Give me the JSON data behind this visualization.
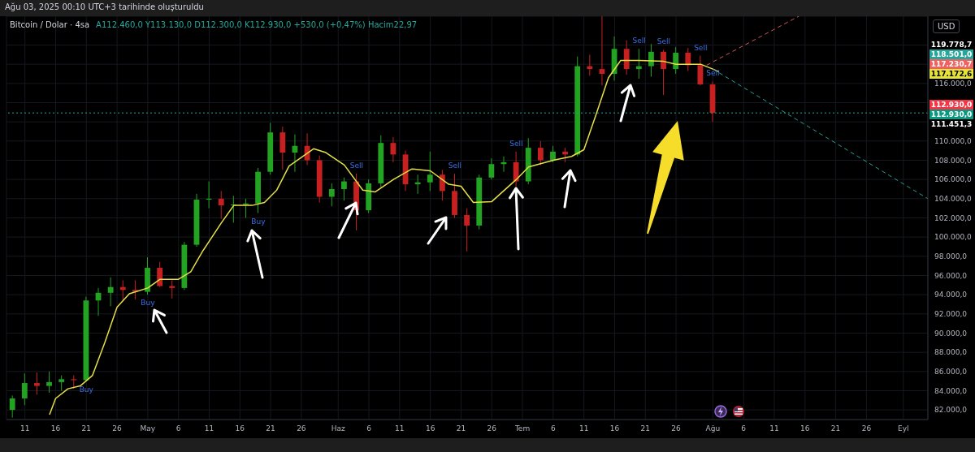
{
  "chart_data": {
    "type": "candlestick",
    "title": "Bitcoin / Dolar · 4sa",
    "ylabel": "USD",
    "x": [
      "2025-04-09",
      "2025-04-11",
      "2025-04-13",
      "2025-04-15",
      "2025-04-17",
      "2025-04-19",
      "2025-04-21",
      "2025-04-23",
      "2025-04-25",
      "2025-04-27",
      "2025-04-29",
      "2025-05-01",
      "2025-05-03",
      "2025-05-05",
      "2025-05-07",
      "2025-05-09",
      "2025-05-11",
      "2025-05-13",
      "2025-05-15",
      "2025-05-17",
      "2025-05-19",
      "2025-05-21",
      "2025-05-23",
      "2025-05-25",
      "2025-05-27",
      "2025-05-29",
      "2025-05-31",
      "2025-06-02",
      "2025-06-04",
      "2025-06-06",
      "2025-06-08",
      "2025-06-10",
      "2025-06-12",
      "2025-06-14",
      "2025-06-16",
      "2025-06-18",
      "2025-06-20",
      "2025-06-22",
      "2025-06-24",
      "2025-06-26",
      "2025-06-28",
      "2025-06-30",
      "2025-07-02",
      "2025-07-04",
      "2025-07-06",
      "2025-07-08",
      "2025-07-10",
      "2025-07-12",
      "2025-07-14",
      "2025-07-16",
      "2025-07-18",
      "2025-07-20",
      "2025-07-22",
      "2025-07-24",
      "2025-07-26",
      "2025-07-28",
      "2025-07-30",
      "2025-08-01"
    ],
    "ohlc": [
      [
        82000,
        83500,
        81200,
        83200
      ],
      [
        83200,
        85800,
        82500,
        84800
      ],
      [
        84800,
        85900,
        83600,
        84500
      ],
      [
        84500,
        86000,
        83800,
        84900
      ],
      [
        84900,
        85600,
        84000,
        85200
      ],
      [
        85200,
        85600,
        84200,
        85100
      ],
      [
        85100,
        93800,
        85000,
        93400
      ],
      [
        93400,
        94700,
        91800,
        94200
      ],
      [
        94200,
        95800,
        92800,
        94800
      ],
      [
        94800,
        95500,
        93300,
        94500
      ],
      [
        94500,
        95500,
        93500,
        94300
      ],
      [
        94300,
        97900,
        94000,
        96800
      ],
      [
        96800,
        97400,
        94800,
        94900
      ],
      [
        94900,
        95500,
        93600,
        94700
      ],
      [
        94700,
        99500,
        94500,
        99200
      ],
      [
        99200,
        104500,
        99000,
        103900
      ],
      [
        103900,
        105800,
        103000,
        104000
      ],
      [
        104000,
        104800,
        101900,
        103300
      ],
      [
        103300,
        104300,
        101500,
        103400
      ],
      [
        103400,
        104000,
        102000,
        103500
      ],
      [
        103500,
        107200,
        102500,
        106800
      ],
      [
        106800,
        111900,
        106500,
        110900
      ],
      [
        110900,
        111500,
        107000,
        108800
      ],
      [
        108800,
        110700,
        106800,
        109500
      ],
      [
        109500,
        110800,
        107500,
        108000
      ],
      [
        108000,
        108500,
        103600,
        104200
      ],
      [
        104200,
        105600,
        103200,
        105000
      ],
      [
        105000,
        106200,
        103800,
        105800
      ],
      [
        105800,
        106600,
        100700,
        102800
      ],
      [
        102800,
        106000,
        102500,
        105600
      ],
      [
        105600,
        110600,
        105200,
        109800
      ],
      [
        109800,
        110400,
        107800,
        108600
      ],
      [
        108600,
        109000,
        104800,
        105500
      ],
      [
        105500,
        106500,
        104500,
        105700
      ],
      [
        105700,
        108900,
        104800,
        106500
      ],
      [
        106500,
        107000,
        103800,
        104800
      ],
      [
        104800,
        106600,
        102000,
        102300
      ],
      [
        102300,
        103000,
        98500,
        101200
      ],
      [
        101200,
        106500,
        100800,
        106200
      ],
      [
        106200,
        108200,
        106000,
        107600
      ],
      [
        107600,
        108400,
        106800,
        107800
      ],
      [
        107800,
        108900,
        105300,
        105800
      ],
      [
        105800,
        110300,
        105500,
        109300
      ],
      [
        109300,
        110000,
        107500,
        108000
      ],
      [
        108000,
        109500,
        107800,
        108900
      ],
      [
        108900,
        109300,
        107800,
        108600
      ],
      [
        108600,
        118800,
        108400,
        117800
      ],
      [
        117800,
        119000,
        116800,
        117500
      ],
      [
        117500,
        123200,
        115800,
        117000
      ],
      [
        117000,
        120900,
        116300,
        119600
      ],
      [
        119600,
        120500,
        116900,
        117500
      ],
      [
        117500,
        119600,
        116500,
        117800
      ],
      [
        117800,
        120100,
        116700,
        119300
      ],
      [
        119300,
        119500,
        114800,
        117500
      ],
      [
        117500,
        119800,
        117000,
        119200
      ],
      [
        119200,
        119700,
        117300,
        117900
      ],
      [
        117900,
        118900,
        115800,
        115900
      ],
      [
        115900,
        116200,
        112000,
        112930
      ]
    ],
    "colors": [
      "#22a322",
      "#22a322",
      "#c62020",
      "#22a322",
      "#22a322",
      "#c62020",
      "#22a322",
      "#22a322",
      "#22a322",
      "#c62020",
      "#c62020",
      "#22a322",
      "#c62020",
      "#c62020",
      "#22a322",
      "#22a322",
      "#22a322",
      "#c62020",
      "#22a322",
      "#22a322",
      "#22a322",
      "#22a322",
      "#c62020",
      "#22a322",
      "#c62020",
      "#c62020",
      "#22a322",
      "#22a322",
      "#c62020",
      "#22a322",
      "#22a322",
      "#c62020",
      "#c62020",
      "#22a322",
      "#22a322",
      "#c62020",
      "#c62020",
      "#c62020",
      "#22a322",
      "#22a322",
      "#22a322",
      "#c62020",
      "#22a322",
      "#c62020",
      "#22a322",
      "#c62020",
      "#22a322",
      "#c62020",
      "#c62020",
      "#22a322",
      "#c62020",
      "#22a322",
      "#22a322",
      "#c62020",
      "#22a322",
      "#c62020",
      "#c62020",
      "#c62020"
    ],
    "series": [
      {
        "type": "line",
        "color": "#e5e046",
        "x": [
          "2025-04-15",
          "2025-04-16",
          "2025-04-18",
          "2025-04-20",
          "2025-04-22",
          "2025-04-24",
          "2025-04-26",
          "2025-04-28",
          "2025-05-01",
          "2025-05-03",
          "2025-05-06",
          "2025-05-08",
          "2025-05-10",
          "2025-05-13",
          "2025-05-15",
          "2025-05-18",
          "2025-05-20",
          "2025-05-22",
          "2025-05-24",
          "2025-05-28",
          "2025-05-30",
          "2025-06-02",
          "2025-06-05",
          "2025-06-07",
          "2025-06-10",
          "2025-06-13",
          "2025-06-16",
          "2025-06-19",
          "2025-06-21",
          "2025-06-23",
          "2025-06-26",
          "2025-06-30",
          "2025-07-02",
          "2025-07-06",
          "2025-07-09",
          "2025-07-11",
          "2025-07-13",
          "2025-07-15",
          "2025-07-17",
          "2025-07-20",
          "2025-07-24",
          "2025-07-26",
          "2025-07-30",
          "2025-08-01",
          "2025-08-02"
        ],
        "values": [
          81500,
          83200,
          84200,
          84500,
          85600,
          89000,
          92700,
          94100,
          94700,
          95600,
          95600,
          96400,
          98600,
          101500,
          103300,
          103300,
          103600,
          104900,
          107400,
          109200,
          108800,
          107500,
          104900,
          104700,
          106000,
          107100,
          106900,
          105500,
          105300,
          103600,
          103700,
          106000,
          107300,
          108000,
          108400,
          109100,
          112800,
          116600,
          118400,
          118400,
          118300,
          118000,
          118000,
          117500,
          117200
        ]
      },
      {
        "type": "line",
        "color": "#d05a55",
        "line_style": "dashed",
        "x": [
          "2025-07-31",
          "2025-08-15"
        ],
        "values": [
          117900,
          123000
        ]
      },
      {
        "type": "line",
        "color": "#2aa198",
        "line_style": "dashed",
        "x": [
          "2025-08-01",
          "2025-09-05"
        ],
        "values": [
          117500,
          104000
        ]
      }
    ],
    "xlim": [
      "2025-04-08",
      "2025-09-05"
    ],
    "xticks": [
      {
        "value": "2025-04-11",
        "label": "11"
      },
      {
        "value": "2025-04-16",
        "label": "16"
      },
      {
        "value": "2025-04-21",
        "label": "21"
      },
      {
        "value": "2025-04-26",
        "label": "26"
      },
      {
        "value": "2025-05-01",
        "label": "May"
      },
      {
        "value": "2025-05-06",
        "label": "6"
      },
      {
        "value": "2025-05-11",
        "label": "11"
      },
      {
        "value": "2025-05-16",
        "label": "16"
      },
      {
        "value": "2025-05-21",
        "label": "21"
      },
      {
        "value": "2025-05-26",
        "label": "26"
      },
      {
        "value": "2025-06-01",
        "label": "Haz"
      },
      {
        "value": "2025-06-06",
        "label": "6"
      },
      {
        "value": "2025-06-11",
        "label": "11"
      },
      {
        "value": "2025-06-16",
        "label": "16"
      },
      {
        "value": "2025-06-21",
        "label": "21"
      },
      {
        "value": "2025-06-26",
        "label": "26"
      },
      {
        "value": "2025-07-01",
        "label": "Tem"
      },
      {
        "value": "2025-07-06",
        "label": "6"
      },
      {
        "value": "2025-07-11",
        "label": "11"
      },
      {
        "value": "2025-07-16",
        "label": "16"
      },
      {
        "value": "2025-07-21",
        "label": "21"
      },
      {
        "value": "2025-07-26",
        "label": "26"
      },
      {
        "value": "2025-08-01",
        "label": "Ağu"
      },
      {
        "value": "2025-08-06",
        "label": "6"
      },
      {
        "value": "2025-08-11",
        "label": "11"
      },
      {
        "value": "2025-08-16",
        "label": "16"
      },
      {
        "value": "2025-08-21",
        "label": "21"
      },
      {
        "value": "2025-08-26",
        "label": "26"
      },
      {
        "value": "2025-09-01",
        "label": "Eyl"
      }
    ],
    "ylim": [
      81000,
      123000
    ],
    "yticks": [
      {
        "value": 82000,
        "label": "82.000,0"
      },
      {
        "value": 84000,
        "label": "84.000,0"
      },
      {
        "value": 86000,
        "label": "86.000,0"
      },
      {
        "value": 88000,
        "label": "88.000,0"
      },
      {
        "value": 90000,
        "label": "90.000,0"
      },
      {
        "value": 92000,
        "label": "92.000,0"
      },
      {
        "value": 94000,
        "label": "94.000,0"
      },
      {
        "value": 96000,
        "label": "96.000,0"
      },
      {
        "value": 98000,
        "label": "98.000,0"
      },
      {
        "value": 100000,
        "label": "100.000,0"
      },
      {
        "value": 102000,
        "label": "102.000,0"
      },
      {
        "value": 104000,
        "label": "104.000,0"
      },
      {
        "value": 106000,
        "label": "106.000,0"
      },
      {
        "value": 108000,
        "label": "108.000,0"
      },
      {
        "value": 110000,
        "label": "110.000,0"
      },
      {
        "value": 112000,
        "label": null
      },
      {
        "value": 114000,
        "label": null
      },
      {
        "value": 116000,
        "label": "116.000,0"
      },
      {
        "value": 118000,
        "label": null
      },
      {
        "value": 120000,
        "label": null
      }
    ],
    "grid": true,
    "ref_lines": [
      {
        "axis": "y",
        "value": 112930,
        "color": "#26a69a",
        "line_style": "dotted"
      }
    ],
    "annotations": [
      "Ağu 03, 2025 00:10 UTC+3 tarihinde oluşturuldu",
      "A112.460,0 Y113.130,0 D112.300,0 K112.930,0 +530,0 (+0,47%) Hacim22,97",
      {
        "text": "Buy",
        "x": "2025-04-21",
        "y": 85000
      },
      {
        "text": "Buy",
        "x": "2025-05-01",
        "y": 94000
      },
      {
        "text": "Buy",
        "x": "2025-05-19",
        "y": 102500
      },
      {
        "text": "Sell",
        "x": "2025-06-04",
        "y": 106600
      },
      {
        "text": "Sell",
        "x": "2025-06-20",
        "y": 106600
      },
      {
        "text": "Sell",
        "x": "2025-06-30",
        "y": 108900
      },
      {
        "text": "Sell",
        "x": "2025-07-20",
        "y": 119600
      },
      {
        "text": "Sell",
        "x": "2025-07-24",
        "y": 119500
      },
      {
        "text": "Sell",
        "x": "2025-07-30",
        "y": 118900
      },
      {
        "text": "Sell",
        "x": "2025-08-01",
        "y": 116200
      },
      "119.778,7",
      "118.501,0",
      "117.230,7",
      "117.172,6",
      "112.930,0",
      "112.930,0",
      "111.451,3"
    ]
  }
}
